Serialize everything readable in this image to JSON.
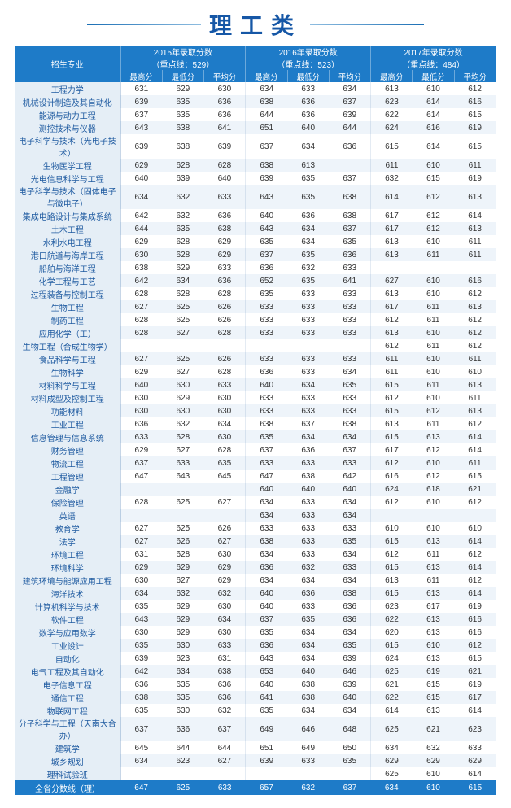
{
  "title": "理工类",
  "header": {
    "majorLabel": "招生专业",
    "years": [
      {
        "year": "2015年录取分数",
        "cutoff": "（重点线：529）"
      },
      {
        "year": "2016年录取分数",
        "cutoff": "（重点线：523）"
      },
      {
        "year": "2017年录取分数",
        "cutoff": "（重点线：484）"
      }
    ],
    "sub": [
      "最高分",
      "最低分",
      "平均分"
    ]
  },
  "rows": [
    {
      "m": "工程力学",
      "v": [
        "631",
        "629",
        "630",
        "634",
        "633",
        "634",
        "613",
        "610",
        "612"
      ]
    },
    {
      "m": "机械设计制造及其自动化",
      "v": [
        "639",
        "635",
        "636",
        "638",
        "636",
        "637",
        "623",
        "614",
        "616"
      ]
    },
    {
      "m": "能源与动力工程",
      "v": [
        "637",
        "635",
        "636",
        "644",
        "636",
        "639",
        "622",
        "614",
        "615"
      ]
    },
    {
      "m": "测控技术与仪器",
      "v": [
        "643",
        "638",
        "641",
        "651",
        "640",
        "644",
        "624",
        "616",
        "619"
      ]
    },
    {
      "m": "电子科学与技术（光电子技术）",
      "v": [
        "639",
        "638",
        "639",
        "637",
        "634",
        "636",
        "615",
        "614",
        "615"
      ]
    },
    {
      "m": "生物医学工程",
      "v": [
        "629",
        "628",
        "628",
        "638",
        "613",
        "",
        "611",
        "610",
        "611"
      ]
    },
    {
      "m": "光电信息科学与工程",
      "v": [
        "640",
        "639",
        "640",
        "639",
        "635",
        "637",
        "632",
        "615",
        "619"
      ]
    },
    {
      "m": "电子科学与技术（固体电子与微电子）",
      "v": [
        "634",
        "632",
        "633",
        "643",
        "635",
        "638",
        "614",
        "612",
        "613"
      ]
    },
    {
      "m": "集成电路设计与集成系统",
      "v": [
        "642",
        "632",
        "636",
        "640",
        "636",
        "638",
        "617",
        "612",
        "614"
      ]
    },
    {
      "m": "土木工程",
      "v": [
        "644",
        "635",
        "638",
        "643",
        "634",
        "637",
        "617",
        "612",
        "613"
      ]
    },
    {
      "m": "水利水电工程",
      "v": [
        "629",
        "628",
        "629",
        "635",
        "634",
        "635",
        "613",
        "610",
        "611"
      ]
    },
    {
      "m": "港口航道与海岸工程",
      "v": [
        "630",
        "628",
        "629",
        "637",
        "635",
        "636",
        "613",
        "611",
        "611"
      ]
    },
    {
      "m": "船舶与海洋工程",
      "v": [
        "638",
        "629",
        "633",
        "636",
        "632",
        "633",
        "",
        "",
        ""
      ]
    },
    {
      "m": "化学工程与工艺",
      "v": [
        "642",
        "634",
        "636",
        "652",
        "635",
        "641",
        "627",
        "610",
        "616"
      ]
    },
    {
      "m": "过程装备与控制工程",
      "v": [
        "628",
        "628",
        "628",
        "635",
        "633",
        "633",
        "613",
        "610",
        "612"
      ]
    },
    {
      "m": "生物工程",
      "v": [
        "627",
        "625",
        "626",
        "633",
        "633",
        "633",
        "617",
        "611",
        "613"
      ]
    },
    {
      "m": "制药工程",
      "v": [
        "628",
        "625",
        "626",
        "633",
        "633",
        "633",
        "612",
        "611",
        "612"
      ]
    },
    {
      "m": "应用化学（工）",
      "v": [
        "628",
        "627",
        "628",
        "633",
        "633",
        "633",
        "613",
        "610",
        "612"
      ]
    },
    {
      "m": "生物工程（合成生物学）",
      "v": [
        "",
        "",
        "",
        "",
        "",
        "",
        "612",
        "611",
        "612"
      ]
    },
    {
      "m": "食品科学与工程",
      "v": [
        "627",
        "625",
        "626",
        "633",
        "633",
        "633",
        "611",
        "610",
        "611"
      ]
    },
    {
      "m": "生物科学",
      "v": [
        "629",
        "627",
        "628",
        "636",
        "633",
        "634",
        "611",
        "610",
        "610"
      ]
    },
    {
      "m": "材料科学与工程",
      "v": [
        "640",
        "630",
        "633",
        "640",
        "634",
        "635",
        "615",
        "611",
        "613"
      ]
    },
    {
      "m": "材料成型及控制工程",
      "v": [
        "630",
        "629",
        "630",
        "633",
        "633",
        "633",
        "612",
        "610",
        "611"
      ]
    },
    {
      "m": "功能材料",
      "v": [
        "630",
        "630",
        "630",
        "633",
        "633",
        "633",
        "615",
        "612",
        "613"
      ]
    },
    {
      "m": "工业工程",
      "v": [
        "636",
        "632",
        "634",
        "638",
        "637",
        "638",
        "613",
        "611",
        "612"
      ]
    },
    {
      "m": "信息管理与信息系统",
      "v": [
        "633",
        "628",
        "630",
        "635",
        "634",
        "634",
        "615",
        "613",
        "614"
      ]
    },
    {
      "m": "财务管理",
      "v": [
        "629",
        "627",
        "628",
        "637",
        "636",
        "637",
        "617",
        "612",
        "614"
      ]
    },
    {
      "m": "物流工程",
      "v": [
        "637",
        "633",
        "635",
        "633",
        "633",
        "633",
        "612",
        "610",
        "611"
      ]
    },
    {
      "m": "工程管理",
      "v": [
        "647",
        "643",
        "645",
        "647",
        "638",
        "642",
        "616",
        "612",
        "615"
      ]
    },
    {
      "m": "金融学",
      "v": [
        "",
        "",
        "",
        "640",
        "640",
        "640",
        "624",
        "618",
        "621"
      ]
    },
    {
      "m": "保险管理",
      "v": [
        "628",
        "625",
        "627",
        "634",
        "633",
        "634",
        "612",
        "610",
        "612"
      ]
    },
    {
      "m": "英语",
      "v": [
        "",
        "",
        "",
        "634",
        "633",
        "634",
        "",
        "",
        ""
      ]
    },
    {
      "m": "教育学",
      "v": [
        "627",
        "625",
        "626",
        "633",
        "633",
        "633",
        "610",
        "610",
        "610"
      ]
    },
    {
      "m": "法学",
      "v": [
        "627",
        "626",
        "627",
        "638",
        "633",
        "635",
        "615",
        "613",
        "614"
      ]
    },
    {
      "m": "环境工程",
      "v": [
        "631",
        "628",
        "630",
        "634",
        "633",
        "634",
        "612",
        "611",
        "612"
      ]
    },
    {
      "m": "环境科学",
      "v": [
        "629",
        "629",
        "629",
        "636",
        "632",
        "633",
        "615",
        "613",
        "614"
      ]
    },
    {
      "m": "建筑环境与能源应用工程",
      "v": [
        "630",
        "627",
        "629",
        "634",
        "634",
        "634",
        "613",
        "611",
        "612"
      ]
    },
    {
      "m": "海洋技术",
      "v": [
        "634",
        "632",
        "632",
        "640",
        "636",
        "638",
        "615",
        "613",
        "614"
      ]
    },
    {
      "m": "计算机科学与技术",
      "v": [
        "635",
        "629",
        "630",
        "640",
        "633",
        "636",
        "623",
        "617",
        "619"
      ]
    },
    {
      "m": "软件工程",
      "v": [
        "643",
        "629",
        "634",
        "637",
        "635",
        "636",
        "622",
        "613",
        "616"
      ]
    },
    {
      "m": "数学与应用数学",
      "v": [
        "630",
        "629",
        "630",
        "635",
        "634",
        "634",
        "620",
        "613",
        "616"
      ]
    },
    {
      "m": "工业设计",
      "v": [
        "635",
        "630",
        "633",
        "636",
        "634",
        "635",
        "615",
        "610",
        "612"
      ]
    },
    {
      "m": "自动化",
      "v": [
        "639",
        "623",
        "631",
        "643",
        "634",
        "639",
        "624",
        "613",
        "615"
      ]
    },
    {
      "m": "电气工程及其自动化",
      "v": [
        "642",
        "634",
        "638",
        "653",
        "640",
        "646",
        "625",
        "619",
        "621"
      ]
    },
    {
      "m": "电子信息工程",
      "v": [
        "636",
        "635",
        "636",
        "640",
        "638",
        "639",
        "621",
        "615",
        "619"
      ]
    },
    {
      "m": "通信工程",
      "v": [
        "638",
        "635",
        "636",
        "641",
        "638",
        "640",
        "622",
        "615",
        "617"
      ]
    },
    {
      "m": "物联网工程",
      "v": [
        "635",
        "630",
        "632",
        "635",
        "634",
        "634",
        "614",
        "613",
        "614"
      ]
    },
    {
      "m": "分子科学与工程（天南大合办）",
      "v": [
        "637",
        "636",
        "637",
        "649",
        "646",
        "648",
        "625",
        "621",
        "623"
      ]
    },
    {
      "m": "建筑学",
      "v": [
        "645",
        "644",
        "644",
        "651",
        "649",
        "650",
        "634",
        "632",
        "633"
      ]
    },
    {
      "m": "城乡规划",
      "v": [
        "634",
        "623",
        "627",
        "639",
        "633",
        "635",
        "629",
        "629",
        "629"
      ]
    },
    {
      "m": "理科试验班",
      "v": [
        "",
        "",
        "",
        "",
        "",
        "",
        "625",
        "610",
        "614"
      ]
    }
  ],
  "summary": {
    "m": "全省分数线（理）",
    "v": [
      "647",
      "625",
      "633",
      "657",
      "632",
      "637",
      "634",
      "610",
      "615"
    ]
  }
}
